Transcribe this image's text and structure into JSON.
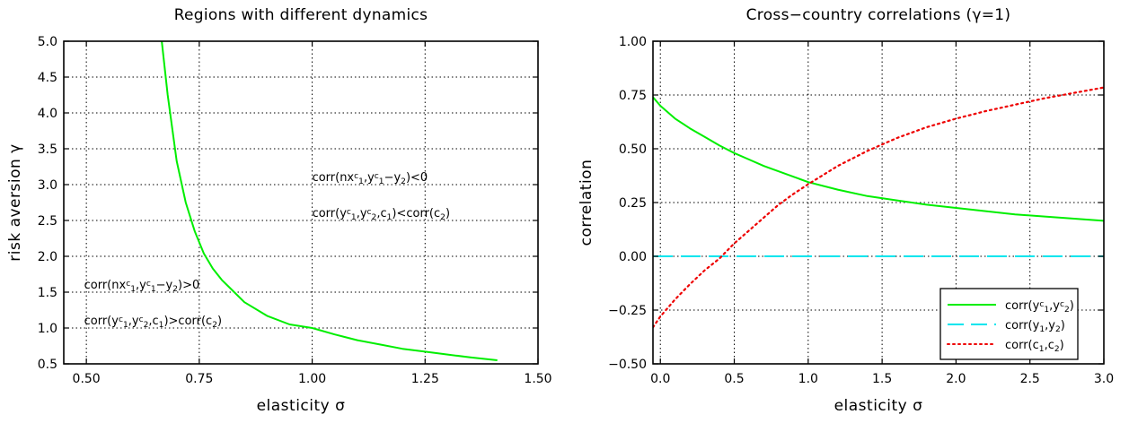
{
  "chart_data": [
    {
      "type": "line",
      "title": "Regions with different dynamics",
      "xlabel": "elasticity σ",
      "ylabel": "risk aversion γ",
      "xlim": [
        0.45,
        1.5
      ],
      "ylim": [
        0.5,
        5.0
      ],
      "xticks": [
        "0.50",
        "0.75",
        "1.00",
        "1.25",
        "1.50"
      ],
      "xtick_values": [
        0.5,
        0.75,
        1.0,
        1.25,
        1.5
      ],
      "yticks": [
        "0.5",
        "1.0",
        "1.5",
        "2.0",
        "2.5",
        "3.0",
        "3.5",
        "4.0",
        "4.5",
        "5.0"
      ],
      "ytick_values": [
        0.5,
        1.0,
        1.5,
        2.0,
        2.5,
        3.0,
        3.5,
        4.0,
        4.5,
        5.0
      ],
      "grid": true,
      "series": [
        {
          "color": "#00ee00",
          "style": "solid",
          "x": [
            0.667,
            0.68,
            0.7,
            0.72,
            0.74,
            0.76,
            0.78,
            0.8,
            0.85,
            0.9,
            0.95,
            1.0,
            1.05,
            1.1,
            1.15,
            1.2,
            1.25,
            1.3,
            1.35,
            1.41
          ],
          "y": [
            5.0,
            4.25,
            3.33,
            2.75,
            2.35,
            2.04,
            1.83,
            1.67,
            1.36,
            1.17,
            1.05,
            1.0,
            0.91,
            0.83,
            0.77,
            0.71,
            0.67,
            0.63,
            0.59,
            0.55
          ]
        }
      ],
      "annotations": [
        {
          "pre": "corr(nx",
          "s1": "1",
          "mid1": ",y",
          "sup1": "c",
          "s2": "1",
          "mid2": "−y",
          "sup2": "c",
          "s3": "2",
          "post": ")<0",
          "x": 1.0,
          "y": 3.05
        },
        {
          "pre": "corr(y",
          "sup1": "c",
          "s1": "1",
          "mid1": ",y",
          "sup2": "c",
          "s2": "2",
          "post": ")<corr(c",
          "s3": "1",
          "mid2": ",c",
          "s4": "2",
          "end": ")",
          "x": 1.0,
          "y": 2.55
        },
        {
          "pre": "corr(nx",
          "s1": "1",
          "mid1": ",y",
          "sup1": "c",
          "s2": "1",
          "mid2": "−y",
          "sup2": "c",
          "s3": "2",
          "post": ")>0",
          "x": 0.495,
          "y": 1.55
        },
        {
          "pre": "corr(y",
          "sup1": "c",
          "s1": "1",
          "mid1": ",y",
          "sup2": "c",
          "s2": "2",
          "post": ")>corr(c",
          "s3": "1",
          "mid2": ",c",
          "s4": "2",
          "end": ")",
          "x": 0.495,
          "y": 1.05
        }
      ]
    },
    {
      "type": "line",
      "title": "Cross−country correlations (γ=1)",
      "xlabel": "elasticity σ",
      "ylabel": "correlation",
      "xlim": [
        -0.05,
        3.0
      ],
      "ylim": [
        -0.5,
        1.0
      ],
      "xticks": [
        "0.0",
        "0.5",
        "1.0",
        "1.5",
        "2.0",
        "2.5",
        "3.0"
      ],
      "xtick_values": [
        0.0,
        0.5,
        1.0,
        1.5,
        2.0,
        2.5,
        3.0
      ],
      "yticks": [
        "−0.50",
        "−0.25",
        "0.00",
        "0.25",
        "0.50",
        "0.75",
        "1.00"
      ],
      "ytick_values": [
        -0.5,
        -0.25,
        0.0,
        0.25,
        0.5,
        0.75,
        1.0
      ],
      "grid": true,
      "legend": "bottom-right",
      "series": [
        {
          "legend": {
            "pre": "corr(y",
            "sup1": "c",
            "s1": "1",
            "mid": ",y",
            "sup2": "c",
            "s2": "2",
            "post": ")"
          },
          "color": "#00ee00",
          "style": "solid",
          "x": [
            -0.05,
            0.0,
            0.1,
            0.2,
            0.3,
            0.4,
            0.5,
            0.6,
            0.7,
            0.8,
            0.9,
            1.0,
            1.2,
            1.4,
            1.6,
            1.8,
            2.0,
            2.2,
            2.4,
            2.6,
            2.8,
            3.0
          ],
          "y": [
            0.74,
            0.7,
            0.64,
            0.595,
            0.555,
            0.515,
            0.48,
            0.45,
            0.42,
            0.395,
            0.37,
            0.345,
            0.31,
            0.28,
            0.26,
            0.24,
            0.225,
            0.21,
            0.195,
            0.185,
            0.175,
            0.165
          ]
        },
        {
          "legend": {
            "pre": "corr(y",
            "s1": "1",
            "mid": ",y",
            "s2": "2",
            "post": ")"
          },
          "color": "#00e5ee",
          "style": "dashed",
          "x": [
            -0.05,
            3.0
          ],
          "y": [
            0.0,
            0.0
          ]
        },
        {
          "legend": {
            "pre": "corr(c",
            "s1": "1",
            "mid": ",c",
            "s2": "2",
            "post": ")"
          },
          "color": "#ee0000",
          "style": "dotted",
          "x": [
            -0.05,
            0.0,
            0.1,
            0.2,
            0.3,
            0.4,
            0.5,
            0.6,
            0.7,
            0.8,
            0.9,
            1.0,
            1.2,
            1.4,
            1.6,
            1.8,
            2.0,
            2.2,
            2.4,
            2.6,
            2.8,
            3.0
          ],
          "y": [
            -0.33,
            -0.28,
            -0.2,
            -0.13,
            -0.065,
            -0.01,
            0.06,
            0.12,
            0.18,
            0.24,
            0.29,
            0.335,
            0.42,
            0.49,
            0.55,
            0.6,
            0.64,
            0.675,
            0.705,
            0.735,
            0.76,
            0.785
          ]
        }
      ]
    }
  ]
}
